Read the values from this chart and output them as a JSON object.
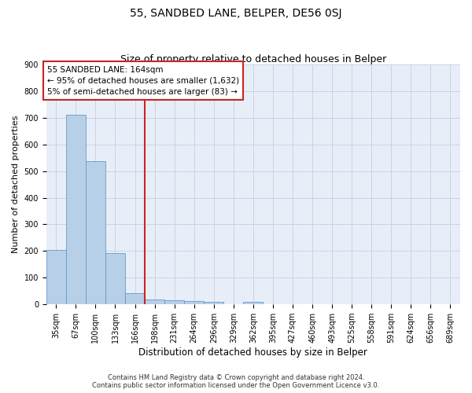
{
  "title": "55, SANDBED LANE, BELPER, DE56 0SJ",
  "subtitle": "Size of property relative to detached houses in Belper",
  "xlabel": "Distribution of detached houses by size in Belper",
  "ylabel": "Number of detached properties",
  "bar_labels": [
    "35sqm",
    "67sqm",
    "100sqm",
    "133sqm",
    "166sqm",
    "198sqm",
    "231sqm",
    "264sqm",
    "296sqm",
    "329sqm",
    "362sqm",
    "395sqm",
    "427sqm",
    "460sqm",
    "493sqm",
    "525sqm",
    "558sqm",
    "591sqm",
    "624sqm",
    "656sqm",
    "689sqm"
  ],
  "bar_values": [
    203,
    711,
    536,
    193,
    42,
    18,
    15,
    13,
    10,
    0,
    10,
    0,
    0,
    0,
    0,
    0,
    0,
    0,
    0,
    0,
    0
  ],
  "bar_color": "#b8cfe8",
  "bar_edge_color": "#6699cc",
  "vline_x": 4.5,
  "vline_color": "#cc2222",
  "annotation_line1": "55 SANDBED LANE: 164sqm",
  "annotation_line2": "← 95% of detached houses are smaller (1,632)",
  "annotation_line3": "5% of semi-detached houses are larger (83) →",
  "ylim": [
    0,
    900
  ],
  "yticks": [
    0,
    100,
    200,
    300,
    400,
    500,
    600,
    700,
    800,
    900
  ],
  "grid_color": "#c8d4e4",
  "background_color": "#e8eef8",
  "footer": "Contains HM Land Registry data © Crown copyright and database right 2024.\nContains public sector information licensed under the Open Government Licence v3.0.",
  "title_fontsize": 10,
  "subtitle_fontsize": 9,
  "xlabel_fontsize": 8.5,
  "ylabel_fontsize": 8,
  "tick_fontsize": 7,
  "annot_fontsize": 7.5,
  "footer_fontsize": 6
}
